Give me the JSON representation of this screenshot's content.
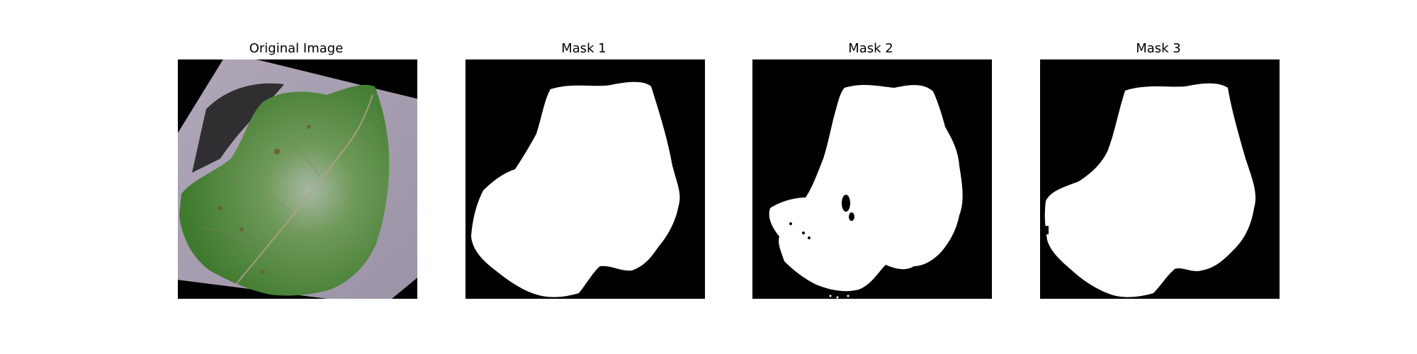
{
  "figure": {
    "panels": [
      {
        "title": "Original Image",
        "kind": "photo",
        "subject": "leaf"
      },
      {
        "title": "Mask 1",
        "kind": "mask"
      },
      {
        "title": "Mask 2",
        "kind": "mask"
      },
      {
        "title": "Mask 3",
        "kind": "mask"
      }
    ],
    "colors": {
      "background": "#ffffff",
      "mask_foreground": "#ffffff",
      "mask_background": "#000000",
      "leaf_green": "#4e8a3a",
      "backdrop_lavender": "#a59cae"
    }
  }
}
